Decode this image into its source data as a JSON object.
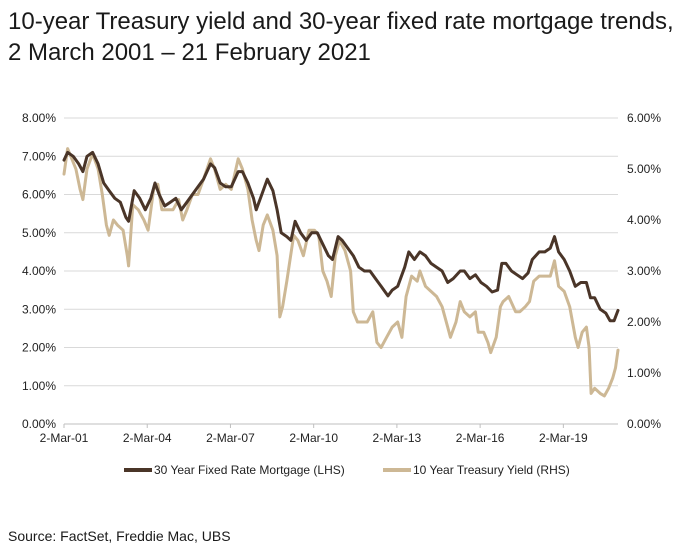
{
  "title_line1": "10-year Treasury yield and 30-year fixed rate mortgage trends,",
  "title_line2": "2 March 2001 – 21 February 2021",
  "source": "Source: FactSet, Freddie Mac, UBS",
  "colors": {
    "mortgage": "#4a3528",
    "treasury": "#cdb895",
    "grid": "#d9d9d9",
    "axis": "#bfbfbf"
  },
  "chart_data": {
    "type": "line",
    "xlim": [
      2001.17,
      2021.14
    ],
    "x_ticks": [
      {
        "x": 2001.17,
        "label": "2-Mar-01"
      },
      {
        "x": 2004.17,
        "label": "2-Mar-04"
      },
      {
        "x": 2007.17,
        "label": "2-Mar-07"
      },
      {
        "x": 2010.17,
        "label": "2-Mar-10"
      },
      {
        "x": 2013.17,
        "label": "2-Mar-13"
      },
      {
        "x": 2016.17,
        "label": "2-Mar-16"
      },
      {
        "x": 2019.17,
        "label": "2-Mar-19"
      }
    ],
    "left_axis": {
      "range": [
        0,
        8
      ],
      "ticks": [
        "0.00%",
        "1.00%",
        "2.00%",
        "3.00%",
        "4.00%",
        "5.00%",
        "6.00%",
        "7.00%",
        "8.00%"
      ]
    },
    "right_axis": {
      "range": [
        0,
        6
      ],
      "ticks": [
        "0.00%",
        "1.00%",
        "2.00%",
        "3.00%",
        "4.00%",
        "5.00%",
        "6.00%"
      ]
    },
    "grid": "horizontal",
    "legend_position": "bottom",
    "series": [
      {
        "name": "30 Year Fixed Rate Mortgage (LHS)",
        "axis": "left",
        "points": [
          [
            2001.17,
            6.9
          ],
          [
            2001.3,
            7.1
          ],
          [
            2001.5,
            7.0
          ],
          [
            2001.7,
            6.8
          ],
          [
            2001.85,
            6.6
          ],
          [
            2002.0,
            7.0
          ],
          [
            2002.2,
            7.1
          ],
          [
            2002.4,
            6.8
          ],
          [
            2002.6,
            6.3
          ],
          [
            2002.8,
            6.1
          ],
          [
            2003.0,
            5.9
          ],
          [
            2003.2,
            5.8
          ],
          [
            2003.4,
            5.4
          ],
          [
            2003.5,
            5.3
          ],
          [
            2003.7,
            6.1
          ],
          [
            2003.9,
            5.9
          ],
          [
            2004.1,
            5.6
          ],
          [
            2004.3,
            5.9
          ],
          [
            2004.45,
            6.3
          ],
          [
            2004.6,
            6.0
          ],
          [
            2004.8,
            5.7
          ],
          [
            2005.0,
            5.8
          ],
          [
            2005.2,
            5.9
          ],
          [
            2005.4,
            5.6
          ],
          [
            2005.6,
            5.8
          ],
          [
            2005.8,
            6.0
          ],
          [
            2006.0,
            6.2
          ],
          [
            2006.2,
            6.4
          ],
          [
            2006.45,
            6.8
          ],
          [
            2006.6,
            6.7
          ],
          [
            2006.8,
            6.3
          ],
          [
            2007.0,
            6.2
          ],
          [
            2007.2,
            6.2
          ],
          [
            2007.45,
            6.6
          ],
          [
            2007.6,
            6.6
          ],
          [
            2007.8,
            6.3
          ],
          [
            2008.0,
            5.9
          ],
          [
            2008.1,
            5.6
          ],
          [
            2008.3,
            6.0
          ],
          [
            2008.5,
            6.4
          ],
          [
            2008.7,
            6.1
          ],
          [
            2008.85,
            5.6
          ],
          [
            2009.0,
            5.0
          ],
          [
            2009.2,
            4.9
          ],
          [
            2009.35,
            4.8
          ],
          [
            2009.5,
            5.3
          ],
          [
            2009.7,
            5.0
          ],
          [
            2009.9,
            4.8
          ],
          [
            2010.1,
            5.0
          ],
          [
            2010.3,
            5.0
          ],
          [
            2010.5,
            4.7
          ],
          [
            2010.7,
            4.4
          ],
          [
            2010.85,
            4.3
          ],
          [
            2011.05,
            4.9
          ],
          [
            2011.2,
            4.8
          ],
          [
            2011.4,
            4.6
          ],
          [
            2011.6,
            4.4
          ],
          [
            2011.8,
            4.1
          ],
          [
            2012.0,
            4.0
          ],
          [
            2012.2,
            4.0
          ],
          [
            2012.4,
            3.8
          ],
          [
            2012.6,
            3.6
          ],
          [
            2012.85,
            3.35
          ],
          [
            2013.0,
            3.5
          ],
          [
            2013.2,
            3.6
          ],
          [
            2013.45,
            4.1
          ],
          [
            2013.6,
            4.5
          ],
          [
            2013.8,
            4.3
          ],
          [
            2014.0,
            4.5
          ],
          [
            2014.2,
            4.4
          ],
          [
            2014.4,
            4.2
          ],
          [
            2014.6,
            4.1
          ],
          [
            2014.8,
            4.0
          ],
          [
            2015.0,
            3.7
          ],
          [
            2015.2,
            3.8
          ],
          [
            2015.45,
            4.0
          ],
          [
            2015.6,
            4.0
          ],
          [
            2015.8,
            3.8
          ],
          [
            2016.0,
            3.9
          ],
          [
            2016.2,
            3.7
          ],
          [
            2016.4,
            3.6
          ],
          [
            2016.6,
            3.45
          ],
          [
            2016.8,
            3.5
          ],
          [
            2016.95,
            4.2
          ],
          [
            2017.1,
            4.2
          ],
          [
            2017.3,
            4.0
          ],
          [
            2017.5,
            3.9
          ],
          [
            2017.7,
            3.8
          ],
          [
            2017.9,
            3.95
          ],
          [
            2018.05,
            4.3
          ],
          [
            2018.3,
            4.5
          ],
          [
            2018.5,
            4.5
          ],
          [
            2018.7,
            4.6
          ],
          [
            2018.85,
            4.9
          ],
          [
            2019.0,
            4.5
          ],
          [
            2019.2,
            4.3
          ],
          [
            2019.4,
            4.0
          ],
          [
            2019.6,
            3.6
          ],
          [
            2019.8,
            3.7
          ],
          [
            2020.0,
            3.7
          ],
          [
            2020.15,
            3.3
          ],
          [
            2020.3,
            3.3
          ],
          [
            2020.5,
            3.0
          ],
          [
            2020.7,
            2.9
          ],
          [
            2020.85,
            2.7
          ],
          [
            2021.0,
            2.7
          ],
          [
            2021.14,
            2.97
          ]
        ]
      },
      {
        "name": "10 Year Treasury Yield (RHS)",
        "axis": "right",
        "points": [
          [
            2001.17,
            4.9
          ],
          [
            2001.3,
            5.4
          ],
          [
            2001.45,
            5.2
          ],
          [
            2001.6,
            5.0
          ],
          [
            2001.75,
            4.6
          ],
          [
            2001.85,
            4.4
          ],
          [
            2002.0,
            5.0
          ],
          [
            2002.2,
            5.3
          ],
          [
            2002.4,
            5.0
          ],
          [
            2002.55,
            4.5
          ],
          [
            2002.7,
            3.9
          ],
          [
            2002.8,
            3.7
          ],
          [
            2002.95,
            4.0
          ],
          [
            2003.1,
            3.9
          ],
          [
            2003.3,
            3.8
          ],
          [
            2003.45,
            3.3
          ],
          [
            2003.5,
            3.1
          ],
          [
            2003.65,
            4.3
          ],
          [
            2003.85,
            4.2
          ],
          [
            2004.05,
            4.0
          ],
          [
            2004.2,
            3.8
          ],
          [
            2004.4,
            4.6
          ],
          [
            2004.55,
            4.7
          ],
          [
            2004.7,
            4.2
          ],
          [
            2004.9,
            4.2
          ],
          [
            2005.1,
            4.2
          ],
          [
            2005.3,
            4.4
          ],
          [
            2005.45,
            4.0
          ],
          [
            2005.6,
            4.2
          ],
          [
            2005.8,
            4.5
          ],
          [
            2006.0,
            4.5
          ],
          [
            2006.2,
            4.8
          ],
          [
            2006.45,
            5.2
          ],
          [
            2006.6,
            5.0
          ],
          [
            2006.8,
            4.6
          ],
          [
            2007.0,
            4.7
          ],
          [
            2007.2,
            4.6
          ],
          [
            2007.45,
            5.2
          ],
          [
            2007.6,
            5.0
          ],
          [
            2007.8,
            4.6
          ],
          [
            2007.95,
            4.0
          ],
          [
            2008.1,
            3.6
          ],
          [
            2008.2,
            3.4
          ],
          [
            2008.35,
            3.9
          ],
          [
            2008.5,
            4.1
          ],
          [
            2008.7,
            3.8
          ],
          [
            2008.85,
            3.3
          ],
          [
            2008.95,
            2.1
          ],
          [
            2009.05,
            2.3
          ],
          [
            2009.2,
            2.8
          ],
          [
            2009.45,
            3.7
          ],
          [
            2009.6,
            3.6
          ],
          [
            2009.8,
            3.3
          ],
          [
            2010.0,
            3.8
          ],
          [
            2010.2,
            3.8
          ],
          [
            2010.35,
            3.7
          ],
          [
            2010.5,
            3.0
          ],
          [
            2010.65,
            2.8
          ],
          [
            2010.8,
            2.5
          ],
          [
            2010.95,
            3.3
          ],
          [
            2011.1,
            3.6
          ],
          [
            2011.3,
            3.4
          ],
          [
            2011.5,
            3.0
          ],
          [
            2011.6,
            2.2
          ],
          [
            2011.75,
            2.0
          ],
          [
            2011.9,
            2.0
          ],
          [
            2012.1,
            2.0
          ],
          [
            2012.3,
            2.2
          ],
          [
            2012.45,
            1.6
          ],
          [
            2012.6,
            1.5
          ],
          [
            2012.8,
            1.7
          ],
          [
            2013.0,
            1.9
          ],
          [
            2013.2,
            2.0
          ],
          [
            2013.35,
            1.7
          ],
          [
            2013.5,
            2.5
          ],
          [
            2013.7,
            2.9
          ],
          [
            2013.9,
            2.8
          ],
          [
            2014.0,
            3.0
          ],
          [
            2014.2,
            2.7
          ],
          [
            2014.4,
            2.6
          ],
          [
            2014.6,
            2.5
          ],
          [
            2014.8,
            2.3
          ],
          [
            2015.0,
            1.9
          ],
          [
            2015.1,
            1.7
          ],
          [
            2015.3,
            2.0
          ],
          [
            2015.45,
            2.4
          ],
          [
            2015.6,
            2.2
          ],
          [
            2015.8,
            2.1
          ],
          [
            2016.0,
            2.2
          ],
          [
            2016.1,
            1.8
          ],
          [
            2016.3,
            1.8
          ],
          [
            2016.45,
            1.6
          ],
          [
            2016.55,
            1.4
          ],
          [
            2016.75,
            1.7
          ],
          [
            2016.9,
            2.3
          ],
          [
            2017.0,
            2.4
          ],
          [
            2017.2,
            2.5
          ],
          [
            2017.45,
            2.2
          ],
          [
            2017.6,
            2.2
          ],
          [
            2017.8,
            2.3
          ],
          [
            2017.95,
            2.4
          ],
          [
            2018.1,
            2.8
          ],
          [
            2018.3,
            2.9
          ],
          [
            2018.5,
            2.9
          ],
          [
            2018.7,
            2.9
          ],
          [
            2018.85,
            3.2
          ],
          [
            2019.0,
            2.7
          ],
          [
            2019.2,
            2.6
          ],
          [
            2019.4,
            2.3
          ],
          [
            2019.6,
            1.7
          ],
          [
            2019.7,
            1.5
          ],
          [
            2019.85,
            1.8
          ],
          [
            2020.0,
            1.9
          ],
          [
            2020.1,
            1.5
          ],
          [
            2020.17,
            0.6
          ],
          [
            2020.3,
            0.7
          ],
          [
            2020.5,
            0.6
          ],
          [
            2020.65,
            0.55
          ],
          [
            2020.8,
            0.7
          ],
          [
            2020.95,
            0.9
          ],
          [
            2021.05,
            1.1
          ],
          [
            2021.14,
            1.45
          ]
        ]
      }
    ]
  }
}
